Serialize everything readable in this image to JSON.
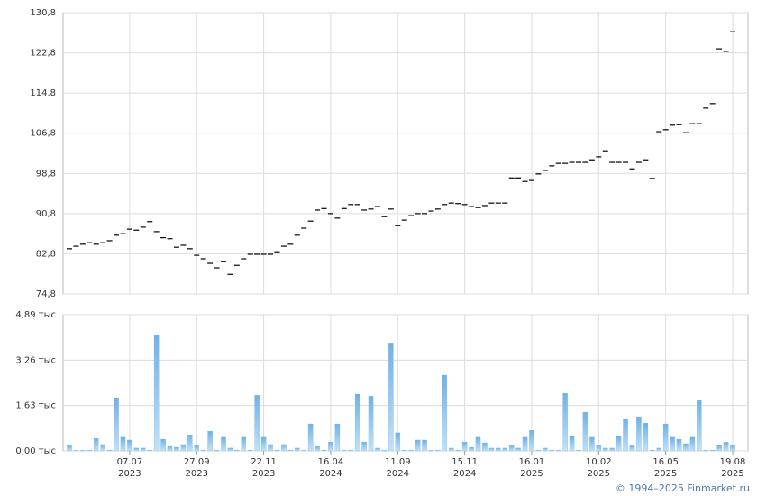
{
  "chart_data": [
    {
      "type": "tick",
      "color": "#000000",
      "values": [
        83.8,
        84.3,
        84.7,
        85.0,
        84.7,
        85.0,
        85.4,
        86.5,
        86.8,
        87.7,
        87.5,
        88.1,
        89.2,
        87.2,
        86.0,
        85.8,
        84.1,
        84.5,
        83.8,
        82.5,
        81.8,
        80.9,
        80.0,
        81.3,
        78.7,
        80.5,
        81.8,
        82.7,
        82.7,
        82.7,
        82.7,
        83.2,
        84.3,
        84.7,
        86.5,
        87.9,
        89.3,
        91.5,
        91.8,
        90.8,
        89.9,
        91.8,
        92.6,
        92.6,
        91.5,
        91.7,
        92.2,
        90.2,
        91.7,
        88.4,
        89.5,
        90.4,
        90.8,
        90.8,
        91.3,
        91.7,
        92.6,
        92.9,
        92.8,
        92.6,
        92.2,
        92.0,
        92.4,
        92.9,
        92.9,
        92.9,
        97.9,
        97.9,
        97.2,
        97.4,
        98.7,
        99.4,
        100.3,
        100.8,
        100.8,
        101.0,
        101.0,
        101.0,
        101.5,
        102.1,
        103.3,
        101.0,
        101.0,
        101.0,
        99.7,
        101.0,
        101.5,
        97.8,
        107.1,
        107.5,
        108.4,
        108.5,
        106.9,
        108.7,
        108.7,
        111.8,
        112.7,
        123.6,
        123.1,
        127.0
      ],
      "ylim": [
        74.8,
        130.8
      ],
      "yticks": [
        {
          "value": 74.8,
          "label": "74,8"
        },
        {
          "value": 82.8,
          "label": "82,8"
        },
        {
          "value": 90.8,
          "label": "90,8"
        },
        {
          "value": 98.8,
          "label": "98,8"
        },
        {
          "value": 106.8,
          "label": "106,8"
        },
        {
          "value": 114.8,
          "label": "114,8"
        },
        {
          "value": 122.8,
          "label": "122,8"
        },
        {
          "value": 130.8,
          "label": "130,8"
        }
      ],
      "grid": true
    },
    {
      "type": "bar",
      "color": "#7ab9e8",
      "categories": [
        null,
        null,
        null,
        null,
        null,
        null,
        null,
        null,
        null,
        "07.07\n2023",
        null,
        null,
        null,
        null,
        null,
        null,
        null,
        null,
        null,
        "27.09\n2023",
        null,
        null,
        null,
        null,
        null,
        null,
        null,
        null,
        null,
        "22.11\n2023",
        null,
        null,
        null,
        null,
        null,
        null,
        null,
        null,
        null,
        "16.04\n2024",
        null,
        null,
        null,
        null,
        null,
        null,
        null,
        null,
        null,
        "11.09\n2024",
        null,
        null,
        null,
        null,
        null,
        null,
        null,
        null,
        null,
        "15.11\n2024",
        null,
        null,
        null,
        null,
        null,
        null,
        null,
        null,
        null,
        "16.01\n2025",
        null,
        null,
        null,
        null,
        null,
        null,
        null,
        null,
        null,
        "10.02\n2025",
        null,
        null,
        null,
        null,
        null,
        null,
        null,
        null,
        null,
        "16.05\n2025",
        null,
        null,
        null,
        null,
        null,
        null,
        null,
        null,
        null,
        "19.08\n2025"
      ],
      "values": [
        0.19,
        0.02,
        0.02,
        0.03,
        0.45,
        0.23,
        0.03,
        1.91,
        0.49,
        0.39,
        0.1,
        0.1,
        0.03,
        4.17,
        0.42,
        0.16,
        0.13,
        0.23,
        0.58,
        0.19,
        0.03,
        0.71,
        0.03,
        0.49,
        0.1,
        0.03,
        0.49,
        0.03,
        2.0,
        0.49,
        0.23,
        0.03,
        0.23,
        0.03,
        0.1,
        0.03,
        0.97,
        0.16,
        0.03,
        0.32,
        0.97,
        0.03,
        0.03,
        2.04,
        0.32,
        1.97,
        0.1,
        0.03,
        3.88,
        0.65,
        0.03,
        0.03,
        0.39,
        0.39,
        0.03,
        0.03,
        2.72,
        0.1,
        0.03,
        0.32,
        0.13,
        0.49,
        0.29,
        0.1,
        0.1,
        0.1,
        0.19,
        0.1,
        0.49,
        0.74,
        0.03,
        0.1,
        0.03,
        0.03,
        2.07,
        0.52,
        0.03,
        1.39,
        0.49,
        0.19,
        0.1,
        0.1,
        0.52,
        1.13,
        0.19,
        1.23,
        1.0,
        0.03,
        0.1,
        0.97,
        0.49,
        0.42,
        0.26,
        0.49,
        1.81,
        0.03,
        0.03,
        0.19,
        0.32,
        0.19
      ],
      "ylim": [
        0,
        4.89
      ],
      "yticks": [
        {
          "value": 0,
          "label": "0,00 тыс"
        },
        {
          "value": 1.63,
          "label": "1,63 тыс"
        },
        {
          "value": 3.26,
          "label": "3,26 тыс"
        },
        {
          "value": 4.89,
          "label": "4,89 тыс"
        }
      ],
      "grid": true
    }
  ],
  "footer": "© 1994–2025 Finmarket.ru"
}
